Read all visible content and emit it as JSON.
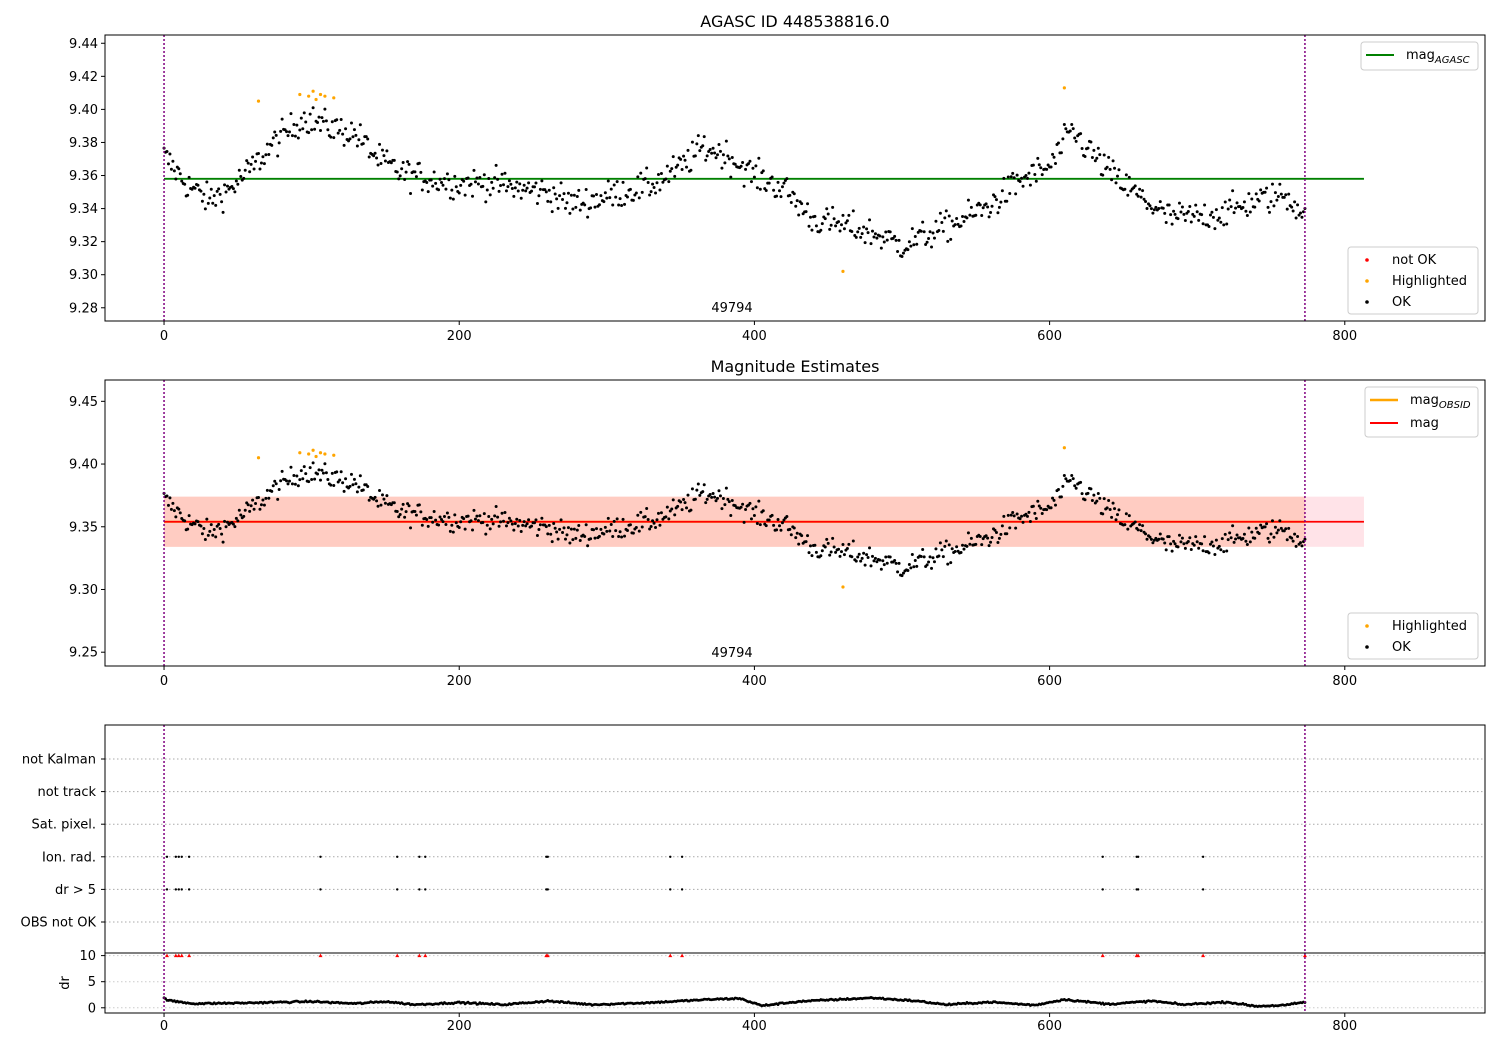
{
  "chart_data": [
    {
      "type": "scatter",
      "title": "AGASC ID 448538816.0",
      "annotation": "49794",
      "xlim": [
        -40,
        895
      ],
      "ylim": [
        9.272,
        9.445
      ],
      "xticks": [
        0,
        200,
        400,
        600,
        800
      ],
      "yticks": [
        9.28,
        9.3,
        9.32,
        9.34,
        9.36,
        9.38,
        9.4,
        9.42,
        9.44
      ],
      "vlines": [
        0,
        773
      ],
      "legend_top": {
        "placement": "upper right",
        "entries": [
          {
            "label": "mag",
            "sub": "AGASC",
            "color": "#008000"
          }
        ]
      },
      "legend_bottom": {
        "placement": "lower right",
        "entries": [
          {
            "label": "not OK",
            "color": "#ff0000"
          },
          {
            "label": "Highlighted",
            "color": "#ffa500"
          },
          {
            "label": "OK",
            "color": "#000000"
          }
        ]
      },
      "hline": {
        "name": "mag_AGASC",
        "y": 9.358,
        "x": [
          0,
          813
        ],
        "color": "#008000"
      },
      "highlighted": [
        [
          64,
          9.405
        ],
        [
          92,
          9.409
        ],
        [
          98,
          9.408
        ],
        [
          101,
          9.411
        ],
        [
          103,
          9.406
        ],
        [
          106,
          9.409
        ],
        [
          109,
          9.408
        ],
        [
          115,
          9.407
        ],
        [
          460,
          9.302
        ],
        [
          610,
          9.413
        ]
      ],
      "trend": [
        [
          0,
          9.372
        ],
        [
          15,
          9.355
        ],
        [
          30,
          9.345
        ],
        [
          45,
          9.352
        ],
        [
          60,
          9.365
        ],
        [
          75,
          9.38
        ],
        [
          95,
          9.395
        ],
        [
          110,
          9.39
        ],
        [
          130,
          9.385
        ],
        [
          145,
          9.37
        ],
        [
          160,
          9.362
        ],
        [
          180,
          9.358
        ],
        [
          200,
          9.355
        ],
        [
          220,
          9.356
        ],
        [
          240,
          9.352
        ],
        [
          260,
          9.35
        ],
        [
          275,
          9.343
        ],
        [
          290,
          9.345
        ],
        [
          310,
          9.35
        ],
        [
          330,
          9.354
        ],
        [
          350,
          9.365
        ],
        [
          365,
          9.377
        ],
        [
          380,
          9.373
        ],
        [
          400,
          9.36
        ],
        [
          420,
          9.352
        ],
        [
          440,
          9.333
        ],
        [
          460,
          9.33
        ],
        [
          480,
          9.325
        ],
        [
          500,
          9.318
        ],
        [
          520,
          9.325
        ],
        [
          540,
          9.333
        ],
        [
          560,
          9.342
        ],
        [
          580,
          9.357
        ],
        [
          600,
          9.365
        ],
        [
          615,
          9.387
        ],
        [
          630,
          9.372
        ],
        [
          645,
          9.358
        ],
        [
          660,
          9.348
        ],
        [
          680,
          9.335
        ],
        [
          700,
          9.335
        ],
        [
          720,
          9.338
        ],
        [
          740,
          9.345
        ],
        [
          760,
          9.348
        ],
        [
          773,
          9.337
        ]
      ],
      "noise": 0.009
    },
    {
      "type": "scatter",
      "title": "Magnitude Estimates",
      "annotation": "49794",
      "xlim": [
        -40,
        895
      ],
      "ylim": [
        9.239,
        9.467
      ],
      "xticks": [
        0,
        200,
        400,
        600,
        800
      ],
      "yticks": [
        9.25,
        9.3,
        9.35,
        9.4,
        9.45
      ],
      "vlines": [
        0,
        773
      ],
      "legend_top": {
        "placement": "upper right",
        "entries": [
          {
            "label": "mag",
            "sub": "OBSID",
            "color": "#ffa500"
          },
          {
            "label": "mag",
            "sub": "",
            "color": "#ff0000"
          }
        ]
      },
      "legend_bottom": {
        "placement": "lower right",
        "entries": [
          {
            "label": "Highlighted",
            "color": "#ffa500"
          },
          {
            "label": "OK",
            "color": "#000000"
          }
        ]
      },
      "hline": {
        "name": "mag",
        "y": 9.354,
        "x": [
          0,
          813
        ],
        "color": "#ff0000"
      },
      "band_outer": {
        "y": [
          9.334,
          9.374
        ],
        "x": [
          0,
          813
        ],
        "color": "#ffc0cb"
      },
      "band_inner": {
        "y": [
          9.334,
          9.374
        ],
        "x": [
          0,
          773
        ],
        "color": "#ffa07a"
      },
      "obsid_line": {
        "y": 9.354,
        "x": [
          0,
          773
        ],
        "color": "#ffa500"
      },
      "highlighted": [
        [
          64,
          9.405
        ],
        [
          92,
          9.409
        ],
        [
          98,
          9.408
        ],
        [
          101,
          9.411
        ],
        [
          103,
          9.406
        ],
        [
          106,
          9.409
        ],
        [
          109,
          9.408
        ],
        [
          115,
          9.407
        ],
        [
          460,
          9.302
        ],
        [
          610,
          9.413
        ]
      ],
      "same_points_as_panel": 0
    },
    {
      "type": "scatter",
      "title": "",
      "xlim": [
        -40,
        895
      ],
      "xticks": [
        0,
        200,
        400,
        600,
        800
      ],
      "vlines": [
        0,
        773
      ],
      "flag_labels": [
        "not Kalman",
        "not track",
        "Sat. pixel.",
        "Ion. rad.",
        "dr > 5",
        "OBS not OK"
      ],
      "flag_times": {
        "Ion. rad.": [
          2,
          8,
          10,
          12,
          17,
          106,
          158,
          173,
          177,
          259,
          260,
          343,
          351,
          636,
          659,
          660,
          704
        ],
        "dr > 5": [
          2,
          8,
          10,
          12,
          17,
          106,
          158,
          173,
          177,
          259,
          260,
          343,
          351,
          636,
          659,
          660,
          704
        ]
      },
      "dr_panel": {
        "ylabel": "dr",
        "yticks": [
          0,
          5,
          10
        ],
        "ylim": [
          -1,
          10.5
        ],
        "clipped_marker_value": 10,
        "clipped_times": [
          2,
          8,
          10,
          12,
          17,
          106,
          158,
          173,
          177,
          259,
          260,
          343,
          351,
          636,
          659,
          660,
          704,
          773
        ],
        "trend": [
          [
            0,
            1.8
          ],
          [
            5,
            1.3
          ],
          [
            20,
            0.8
          ],
          [
            50,
            0.9
          ],
          [
            100,
            1.2
          ],
          [
            130,
            0.8
          ],
          [
            150,
            1.2
          ],
          [
            170,
            0.6
          ],
          [
            200,
            1.0
          ],
          [
            230,
            0.6
          ],
          [
            260,
            1.3
          ],
          [
            290,
            0.6
          ],
          [
            330,
            1.0
          ],
          [
            370,
            1.6
          ],
          [
            390,
            1.8
          ],
          [
            405,
            0.4
          ],
          [
            430,
            1.2
          ],
          [
            450,
            1.5
          ],
          [
            480,
            1.9
          ],
          [
            510,
            1.3
          ],
          [
            530,
            0.6
          ],
          [
            560,
            1.1
          ],
          [
            590,
            0.5
          ],
          [
            610,
            1.6
          ],
          [
            640,
            0.7
          ],
          [
            670,
            1.3
          ],
          [
            690,
            0.6
          ],
          [
            720,
            1.1
          ],
          [
            740,
            0.3
          ],
          [
            760,
            0.5
          ],
          [
            773,
            1.1
          ]
        ]
      }
    }
  ]
}
